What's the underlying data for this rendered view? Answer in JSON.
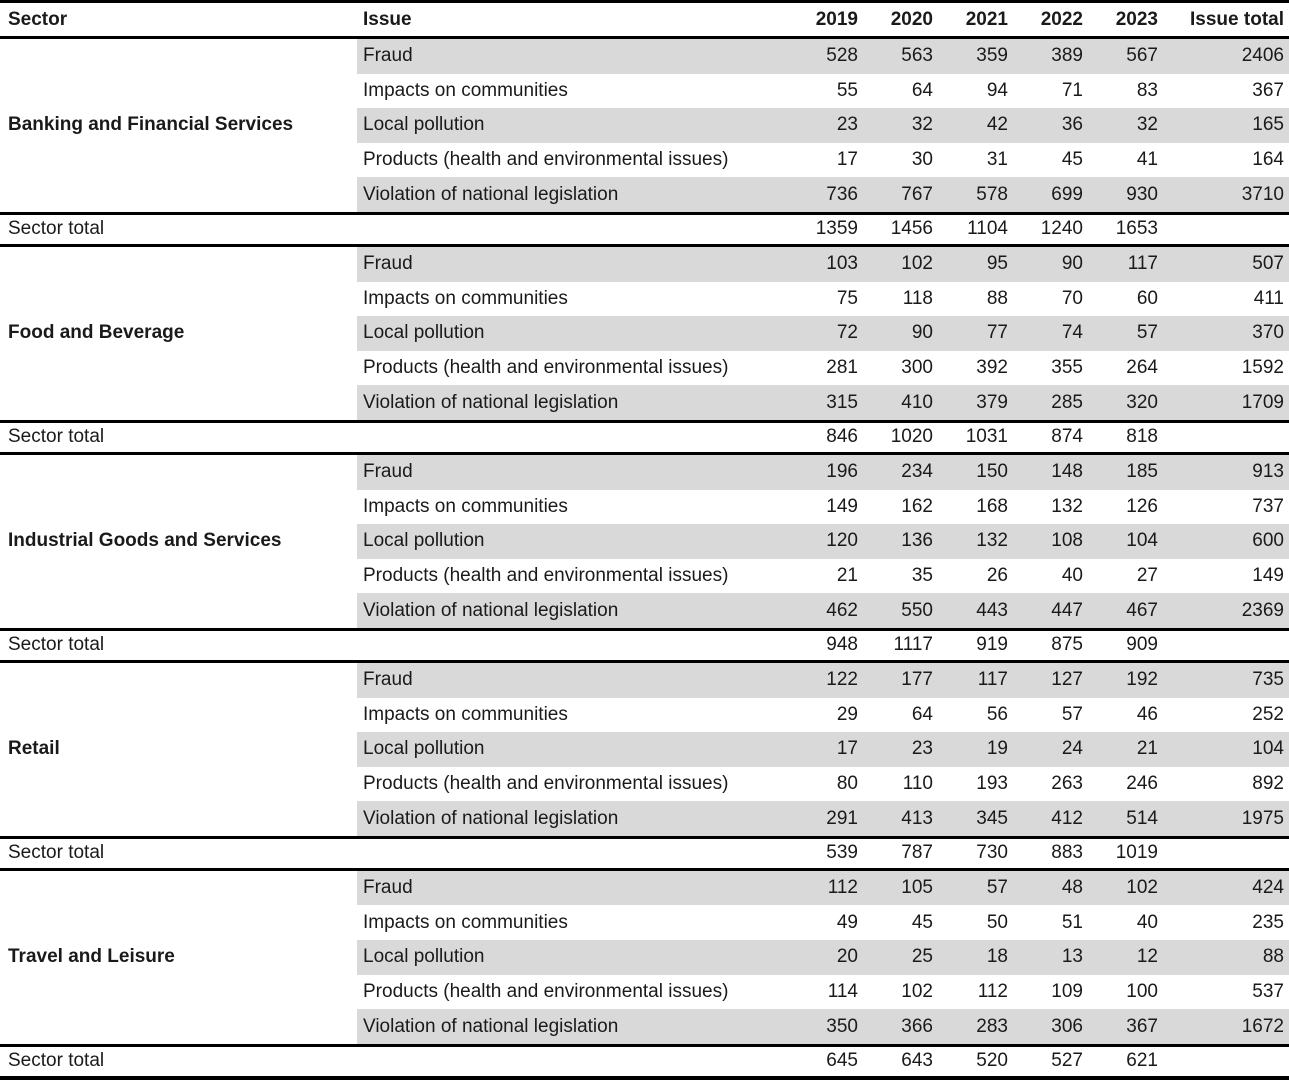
{
  "colors": {
    "stripe": "#d9d9d9",
    "rule": "#000000",
    "text": "#1a1a1a",
    "background": "#ffffff"
  },
  "table": {
    "columns": [
      "Sector",
      "Issue",
      "2019",
      "2020",
      "2021",
      "2022",
      "2023",
      "Issue total"
    ],
    "sector_total_label": "Sector total",
    "sectors": [
      {
        "name": "Banking and Financial Services",
        "rows": [
          {
            "issue": "Fraud",
            "values": [
              528,
              563,
              359,
              389,
              567
            ],
            "issue_total": 2406
          },
          {
            "issue": "Impacts on communities",
            "values": [
              55,
              64,
              94,
              71,
              83
            ],
            "issue_total": 367
          },
          {
            "issue": "Local pollution",
            "values": [
              23,
              32,
              42,
              36,
              32
            ],
            "issue_total": 165
          },
          {
            "issue": "Products (health and environmental issues)",
            "values": [
              17,
              30,
              31,
              45,
              41
            ],
            "issue_total": 164
          },
          {
            "issue": "Violation of national legislation",
            "values": [
              736,
              767,
              578,
              699,
              930
            ],
            "issue_total": 3710
          }
        ],
        "sector_total": [
          1359,
          1456,
          1104,
          1240,
          1653
        ]
      },
      {
        "name": "Food and Beverage",
        "rows": [
          {
            "issue": "Fraud",
            "values": [
              103,
              102,
              95,
              90,
              117
            ],
            "issue_total": 507
          },
          {
            "issue": "Impacts on communities",
            "values": [
              75,
              118,
              88,
              70,
              60
            ],
            "issue_total": 411
          },
          {
            "issue": "Local pollution",
            "values": [
              72,
              90,
              77,
              74,
              57
            ],
            "issue_total": 370
          },
          {
            "issue": "Products (health and environmental issues)",
            "values": [
              281,
              300,
              392,
              355,
              264
            ],
            "issue_total": 1592
          },
          {
            "issue": "Violation of national legislation",
            "values": [
              315,
              410,
              379,
              285,
              320
            ],
            "issue_total": 1709
          }
        ],
        "sector_total": [
          846,
          1020,
          1031,
          874,
          818
        ]
      },
      {
        "name": "Industrial Goods and Services",
        "rows": [
          {
            "issue": "Fraud",
            "values": [
              196,
              234,
              150,
              148,
              185
            ],
            "issue_total": 913
          },
          {
            "issue": "Impacts on communities",
            "values": [
              149,
              162,
              168,
              132,
              126
            ],
            "issue_total": 737
          },
          {
            "issue": "Local pollution",
            "values": [
              120,
              136,
              132,
              108,
              104
            ],
            "issue_total": 600
          },
          {
            "issue": "Products (health and environmental issues)",
            "values": [
              21,
              35,
              26,
              40,
              27
            ],
            "issue_total": 149
          },
          {
            "issue": "Violation of national legislation",
            "values": [
              462,
              550,
              443,
              447,
              467
            ],
            "issue_total": 2369
          }
        ],
        "sector_total": [
          948,
          1117,
          919,
          875,
          909
        ]
      },
      {
        "name": "Retail",
        "rows": [
          {
            "issue": "Fraud",
            "values": [
              122,
              177,
              117,
              127,
              192
            ],
            "issue_total": 735
          },
          {
            "issue": "Impacts on communities",
            "values": [
              29,
              64,
              56,
              57,
              46
            ],
            "issue_total": 252
          },
          {
            "issue": "Local pollution",
            "values": [
              17,
              23,
              19,
              24,
              21
            ],
            "issue_total": 104
          },
          {
            "issue": "Products (health and environmental issues)",
            "values": [
              80,
              110,
              193,
              263,
              246
            ],
            "issue_total": 892
          },
          {
            "issue": "Violation of national legislation",
            "values": [
              291,
              413,
              345,
              412,
              514
            ],
            "issue_total": 1975
          }
        ],
        "sector_total": [
          539,
          787,
          730,
          883,
          1019
        ]
      },
      {
        "name": "Travel and Leisure",
        "rows": [
          {
            "issue": "Fraud",
            "values": [
              112,
              105,
              57,
              48,
              102
            ],
            "issue_total": 424
          },
          {
            "issue": "Impacts on communities",
            "values": [
              49,
              45,
              50,
              51,
              40
            ],
            "issue_total": 235
          },
          {
            "issue": "Local pollution",
            "values": [
              20,
              25,
              18,
              13,
              12
            ],
            "issue_total": 88
          },
          {
            "issue": "Products (health and environmental issues)",
            "values": [
              114,
              102,
              112,
              109,
              100
            ],
            "issue_total": 537
          },
          {
            "issue": "Violation of national legislation",
            "values": [
              350,
              366,
              283,
              306,
              367
            ],
            "issue_total": 1672
          }
        ],
        "sector_total": [
          645,
          643,
          520,
          527,
          621
        ]
      }
    ]
  }
}
